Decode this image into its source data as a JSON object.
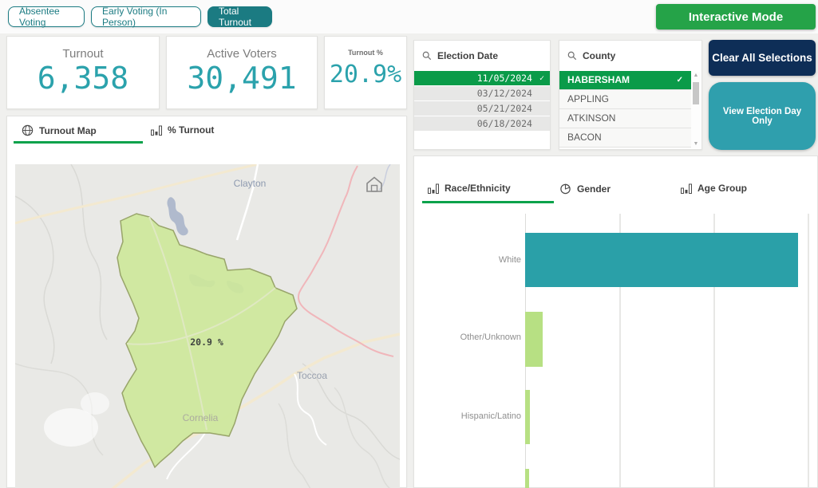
{
  "toolbar": {
    "buttons": [
      {
        "label": "Absentee Voting",
        "selected": false
      },
      {
        "label": "Early Voting (In Person)",
        "selected": false
      },
      {
        "label": "Total Turnout",
        "selected": true
      }
    ],
    "interactive_mode_label": "Interactive Mode"
  },
  "kpis": [
    {
      "label": "Turnout",
      "value": "6,358"
    },
    {
      "label": "Active Voters",
      "value": "30,491"
    },
    {
      "label": "Turnout %",
      "value": "20.9%"
    }
  ],
  "filters": {
    "election_date": {
      "title": "Election Date",
      "options": [
        {
          "label": "11/05/2024",
          "selected": true
        },
        {
          "label": "03/12/2024",
          "selected": false
        },
        {
          "label": "05/21/2024",
          "selected": false
        },
        {
          "label": "06/18/2024",
          "selected": false
        }
      ]
    },
    "county": {
      "title": "County",
      "options": [
        {
          "label": "HABERSHAM",
          "selected": true
        },
        {
          "label": "APPLING",
          "selected": false
        },
        {
          "label": "ATKINSON",
          "selected": false
        },
        {
          "label": "BACON",
          "selected": false
        }
      ]
    }
  },
  "actions": {
    "clear_label": "Clear All Selections",
    "view_day_label": "View Election Day Only"
  },
  "map_panel": {
    "tabs": [
      {
        "label": "Turnout Map",
        "active": true
      },
      {
        "label": "% Turnout",
        "active": false
      }
    ],
    "county_value_label": "20.9 %",
    "places": {
      "north": "Clayton",
      "east": "Toccoa",
      "inside": "Cornelia"
    }
  },
  "chart_panel": {
    "tabs": [
      {
        "label": "Race/Ethnicity",
        "active": true
      },
      {
        "label": "Gender",
        "active": false
      },
      {
        "label": "Age Group",
        "active": false
      }
    ]
  },
  "chart_data": {
    "type": "bar",
    "orientation": "horizontal",
    "title": "Race/Ethnicity",
    "categories": [
      "White",
      "Other/Unknown",
      "Hispanic/Latino",
      ""
    ],
    "values": [
      5800,
      370,
      100,
      85
    ],
    "values_estimated_from_gridlines": true,
    "x_gridline_interval": 2000,
    "xlim": [
      0,
      6300
    ],
    "bar_colors": [
      "#2aa0a8",
      "#b7e083",
      "#b7e083",
      "#b7e083"
    ],
    "axis_tick_labels_visible": false,
    "legend": "none"
  },
  "colors": {
    "teal_button": "#1b7b82",
    "kpi_teal": "#2ba2ac",
    "selection_green": "#0a9b49",
    "interactive_green": "#25a348",
    "navy": "#0e2e57",
    "view_day_teal": "#2f9fad",
    "bar_teal": "#2aa0a8",
    "bar_green": "#b7e083",
    "tab_underline_green": "#0aa24b"
  }
}
